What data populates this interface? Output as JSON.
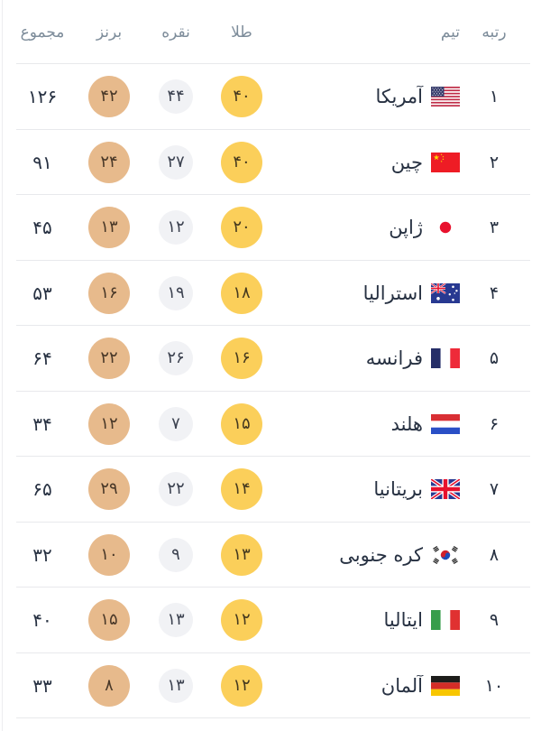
{
  "colors": {
    "gold_circle": "#fbcf5a",
    "silver_circle": "#f1f2f5",
    "bronze_circle": "#e7ba8c",
    "header_text": "#7d8c9a",
    "body_text": "#273142",
    "divider": "#e8e9ec"
  },
  "table": {
    "headers": {
      "rank": "رتبه",
      "team": "تیم",
      "gold": "طلا",
      "silver": "نقره",
      "bronze": "برنز",
      "total": "مجموع"
    },
    "rows": [
      {
        "rank": "۱",
        "team": "آمریکا",
        "flag": "us",
        "gold": "۴۰",
        "silver": "۴۴",
        "bronze": "۴۲",
        "total": "۱۲۶"
      },
      {
        "rank": "۲",
        "team": "چین",
        "flag": "cn",
        "gold": "۴۰",
        "silver": "۲۷",
        "bronze": "۲۴",
        "total": "۹۱"
      },
      {
        "rank": "۳",
        "team": "ژاپن",
        "flag": "jp",
        "gold": "۲۰",
        "silver": "۱۲",
        "bronze": "۱۳",
        "total": "۴۵"
      },
      {
        "rank": "۴",
        "team": "استرالیا",
        "flag": "au",
        "gold": "۱۸",
        "silver": "۱۹",
        "bronze": "۱۶",
        "total": "۵۳"
      },
      {
        "rank": "۵",
        "team": "فرانسه",
        "flag": "fr",
        "gold": "۱۶",
        "silver": "۲۶",
        "bronze": "۲۲",
        "total": "۶۴"
      },
      {
        "rank": "۶",
        "team": "هلند",
        "flag": "nl",
        "gold": "۱۵",
        "silver": "۷",
        "bronze": "۱۲",
        "total": "۳۴"
      },
      {
        "rank": "۷",
        "team": "بریتانیا",
        "flag": "gb",
        "gold": "۱۴",
        "silver": "۲۲",
        "bronze": "۲۹",
        "total": "۶۵"
      },
      {
        "rank": "۸",
        "team": "کره جنوبی",
        "flag": "kr",
        "gold": "۱۳",
        "silver": "۹",
        "bronze": "۱۰",
        "total": "۳۲"
      },
      {
        "rank": "۹",
        "team": "ایتالیا",
        "flag": "it",
        "gold": "۱۲",
        "silver": "۱۳",
        "bronze": "۱۵",
        "total": "۴۰"
      },
      {
        "rank": "۱۰",
        "team": "آلمان",
        "flag": "de",
        "gold": "۱۲",
        "silver": "۱۳",
        "bronze": "۸",
        "total": "۳۳"
      }
    ]
  }
}
